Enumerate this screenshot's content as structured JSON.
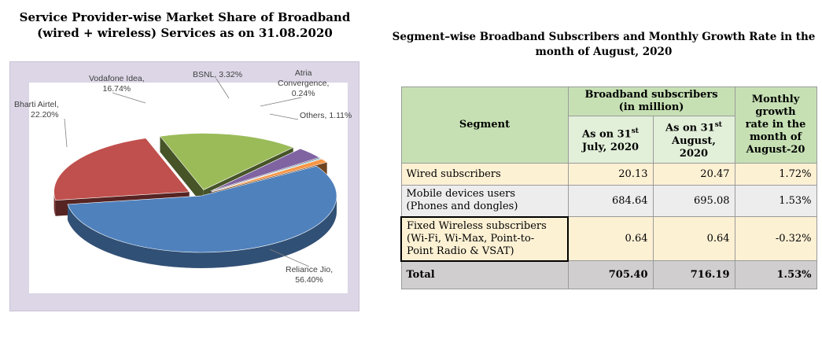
{
  "pie": {
    "title_line1": "Service Provider-wise Market Share of Broadband",
    "title_line2": "(wired + wireless) Services as on 31.08.2020"
  },
  "chart_data": [
    {
      "type": "pie",
      "title": "Service Provider-wise Market Share of Broadband (wired + wireless) Services as on 31.08.2020",
      "categories": [
        "Reliance Jio",
        "Bharti Airtel",
        "Vodafone Idea",
        "BSNL",
        "Atria Convergence",
        "Others"
      ],
      "values": [
        56.4,
        22.2,
        16.74,
        3.32,
        0.24,
        1.11
      ],
      "label_text": [
        [
          "Reliance Jio,",
          "56.40%"
        ],
        [
          "Bharti Airtel,",
          "22.20%"
        ],
        [
          "Vodafone Idea,",
          "16.74%"
        ],
        [
          "BSNL, 3.32%"
        ],
        [
          "Atria",
          "Convergence,",
          "0.24%"
        ],
        [
          "Others, 1.11%"
        ]
      ],
      "colors": [
        "#4f81bd",
        "#c0504d",
        "#9bbb59",
        "#8064a2",
        "#4bacc6",
        "#f79646"
      ],
      "unit": "%",
      "style": "3d-exploded"
    },
    {
      "type": "table",
      "title": "Segment–wise Broadband Subscribers and Monthly Growth Rate in the month of August, 2020",
      "columns": [
        "Segment",
        "As on 31st July, 2020",
        "As on 31st August, 2020",
        "Monthly growth rate in the month of August-20"
      ],
      "rows": [
        [
          "Wired subscribers",
          "20.13",
          "20.47",
          "1.72%"
        ],
        [
          "Mobile devices users (Phones and dongles)",
          "684.64",
          "695.08",
          "1.53%"
        ],
        [
          "Fixed Wireless subscribers (Wi-Fi, Wi-Max, Point-to-Point Radio & VSAT)",
          "0.64",
          "0.64",
          "-0.32%"
        ],
        [
          "Total",
          "705.40",
          "716.19",
          "1.53%"
        ]
      ]
    }
  ],
  "table": {
    "title_line1": "Segment–wise Broadband Subscribers and Monthly Growth Rate in the",
    "title_line2": "month of August, 2020",
    "h_segment": "Segment",
    "h_group_line1": "Broadband subscribers",
    "h_group_line2": "(in million)",
    "h_july_pre": "As on 31",
    "h_july_sup": "st",
    "h_july_post": "July, 2020",
    "h_aug_pre": "As on 31",
    "h_aug_sup": "st",
    "h_aug_line2": "August,",
    "h_aug_line3": "2020",
    "h_growth_1": "Monthly",
    "h_growth_2": "growth",
    "h_growth_3": "rate in the",
    "h_growth_4": "month of",
    "h_growth_5": "August-20",
    "rows": [
      {
        "label_lines": [
          "Wired subscribers"
        ],
        "july": "20.13",
        "aug": "20.47",
        "growth": "1.72%"
      },
      {
        "label_lines": [
          "Mobile devices users",
          "(Phones and dongles)"
        ],
        "july": "684.64",
        "aug": "695.08",
        "growth": "1.53%"
      },
      {
        "label_lines": [
          "Fixed Wireless subscribers",
          "(Wi-Fi, Wi-Max, Point-to-",
          "Point Radio & VSAT)"
        ],
        "july": "0.64",
        "aug": "0.64",
        "growth": "-0.32%"
      }
    ],
    "total": {
      "label": "Total",
      "july": "705.40",
      "aug": "716.19",
      "growth": "1.53%"
    }
  }
}
